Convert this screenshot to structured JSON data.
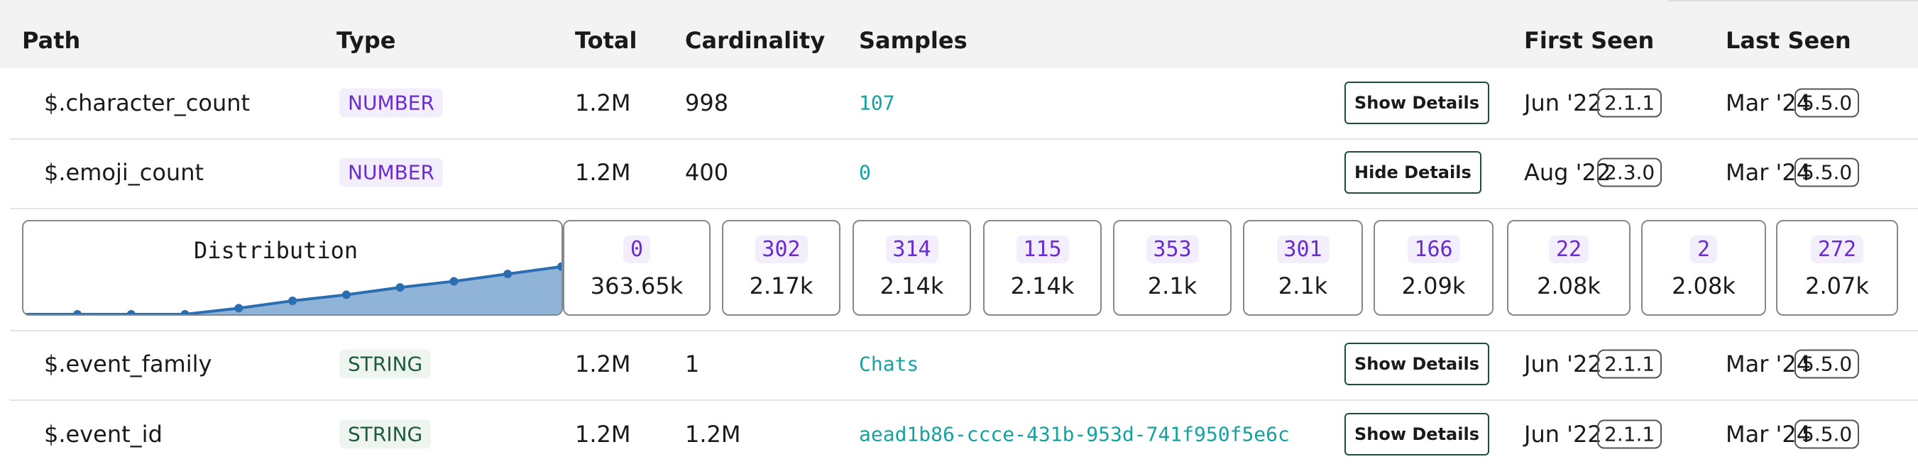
{
  "header": {
    "columns": [
      "Path",
      "Type",
      "Total",
      "Cardinality",
      "Samples",
      "First Seen",
      "Last Seen"
    ]
  },
  "rows": [
    {
      "path": "$.character_count",
      "type": "NUMBER",
      "total": "1.2M",
      "cardinality": "998",
      "sample": "107",
      "action": "Show Details",
      "first_seen": "Jun '22",
      "first_version": "2.1.1",
      "last_seen": "Mar '24",
      "last_version": "5.5.0"
    },
    {
      "path": "$.emoji_count",
      "type": "NUMBER",
      "total": "1.2M",
      "cardinality": "400",
      "sample": "0",
      "action": "Hide Details",
      "first_seen": "Aug '22",
      "first_version": "2.3.0",
      "last_seen": "Mar '24",
      "last_version": "5.5.0"
    },
    {
      "path": "$.event_family",
      "type": "STRING",
      "total": "1.2M",
      "cardinality": "1",
      "sample": "Chats",
      "action": "Show Details",
      "first_seen": "Jun '22",
      "first_version": "2.1.1",
      "last_seen": "Mar '24",
      "last_version": "5.5.0"
    },
    {
      "path": "$.event_id",
      "type": "STRING",
      "total": "1.2M",
      "cardinality": "1.2M",
      "sample": "aead1b86-ccce-431b-953d-741f950f5e6c",
      "action": "Show Details",
      "first_seen": "Jun '22",
      "first_version": "2.1.1",
      "last_seen": "Mar '24",
      "last_version": "5.5.0"
    }
  ],
  "distribution": {
    "title": "Distribution",
    "trend": [
      0,
      0,
      0,
      5,
      11,
      16,
      22,
      27,
      33,
      39
    ],
    "bins": [
      {
        "value": "0",
        "count": "363.65k"
      },
      {
        "value": "302",
        "count": "2.17k"
      },
      {
        "value": "314",
        "count": "2.14k"
      },
      {
        "value": "115",
        "count": "2.14k"
      },
      {
        "value": "353",
        "count": "2.1k"
      },
      {
        "value": "301",
        "count": "2.1k"
      },
      {
        "value": "166",
        "count": "2.09k"
      },
      {
        "value": "22",
        "count": "2.08k"
      },
      {
        "value": "2",
        "count": "2.08k"
      },
      {
        "value": "272",
        "count": "2.07k"
      }
    ]
  }
}
